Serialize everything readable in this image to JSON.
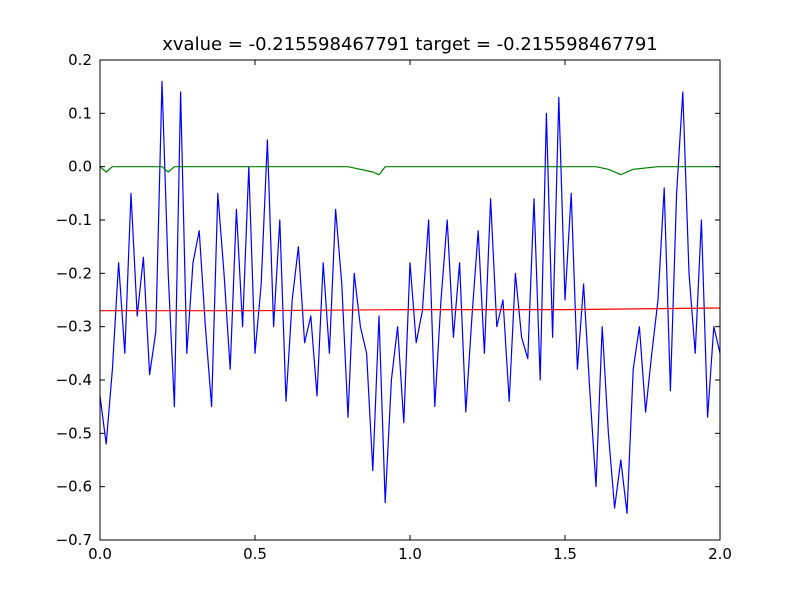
{
  "chart_data": {
    "type": "line",
    "title": "xvalue = -0.215598467791 target = -0.215598467791",
    "xlabel": "",
    "ylabel": "",
    "xlim": [
      0.0,
      2.0
    ],
    "ylim": [
      -0.7,
      0.2
    ],
    "grid": false,
    "x_ticks": [
      "0.0",
      "0.5",
      "1.0",
      "1.5",
      "2.0"
    ],
    "y_ticks": [
      "0.2",
      "0.1",
      "0.0",
      "−0.1",
      "−0.2",
      "−0.3",
      "−0.4",
      "−0.5",
      "−0.6",
      "−0.7"
    ],
    "series": [
      {
        "color": "#0000ff",
        "x": [
          0.0,
          0.02,
          0.04,
          0.06,
          0.08,
          0.1,
          0.12,
          0.14,
          0.16,
          0.18,
          0.2,
          0.22,
          0.24,
          0.26,
          0.28,
          0.3,
          0.32,
          0.34,
          0.36,
          0.38,
          0.4,
          0.42,
          0.44,
          0.46,
          0.48,
          0.5,
          0.52,
          0.54,
          0.56,
          0.58,
          0.6,
          0.62,
          0.64,
          0.66,
          0.68,
          0.7,
          0.72,
          0.74,
          0.76,
          0.78,
          0.8,
          0.82,
          0.84,
          0.86,
          0.88,
          0.9,
          0.92,
          0.94,
          0.96,
          0.98,
          1.0,
          1.02,
          1.04,
          1.06,
          1.08,
          1.1,
          1.12,
          1.14,
          1.16,
          1.18,
          1.2,
          1.22,
          1.24,
          1.26,
          1.28,
          1.3,
          1.32,
          1.34,
          1.36,
          1.38,
          1.4,
          1.42,
          1.44,
          1.46,
          1.48,
          1.5,
          1.52,
          1.54,
          1.56,
          1.58,
          1.6,
          1.62,
          1.64,
          1.66,
          1.68,
          1.7,
          1.72,
          1.74,
          1.76,
          1.78,
          1.8,
          1.82,
          1.84,
          1.86,
          1.88,
          1.9,
          1.92,
          1.94,
          1.96,
          1.98,
          2.0
        ],
        "y": [
          -0.43,
          -0.52,
          -0.38,
          -0.18,
          -0.35,
          -0.05,
          -0.28,
          -0.17,
          -0.39,
          -0.31,
          0.16,
          -0.2,
          -0.45,
          0.14,
          -0.35,
          -0.18,
          -0.12,
          -0.3,
          -0.45,
          -0.05,
          -0.2,
          -0.38,
          -0.08,
          -0.3,
          0.0,
          -0.35,
          -0.22,
          0.05,
          -0.3,
          -0.1,
          -0.44,
          -0.25,
          -0.15,
          -0.33,
          -0.28,
          -0.43,
          -0.18,
          -0.35,
          -0.08,
          -0.22,
          -0.47,
          -0.2,
          -0.3,
          -0.35,
          -0.57,
          -0.28,
          -0.63,
          -0.4,
          -0.3,
          -0.48,
          -0.18,
          -0.33,
          -0.27,
          -0.1,
          -0.45,
          -0.25,
          -0.1,
          -0.32,
          -0.18,
          -0.46,
          -0.28,
          -0.12,
          -0.35,
          -0.06,
          -0.3,
          -0.25,
          -0.44,
          -0.2,
          -0.32,
          -0.36,
          -0.06,
          -0.4,
          0.1,
          -0.32,
          0.13,
          -0.25,
          -0.05,
          -0.38,
          -0.22,
          -0.42,
          -0.6,
          -0.3,
          -0.5,
          -0.64,
          -0.55,
          -0.65,
          -0.38,
          -0.3,
          -0.46,
          -0.35,
          -0.25,
          -0.04,
          -0.42,
          -0.05,
          0.14,
          -0.2,
          -0.35,
          -0.1,
          -0.47,
          -0.3,
          -0.35
        ]
      },
      {
        "color": "#008000",
        "x": [
          0.0,
          0.02,
          0.04,
          0.06,
          0.08,
          0.1,
          0.15,
          0.2,
          0.22,
          0.24,
          0.26,
          0.3,
          0.4,
          0.5,
          0.6,
          0.7,
          0.8,
          0.88,
          0.9,
          0.92,
          1.0,
          1.1,
          1.2,
          1.3,
          1.4,
          1.5,
          1.6,
          1.64,
          1.68,
          1.7,
          1.72,
          1.8,
          1.9,
          2.0
        ],
        "y": [
          0.0,
          -0.01,
          0.0,
          0.0,
          0.0,
          0.0,
          0.0,
          0.0,
          -0.01,
          0.0,
          0.0,
          0.0,
          0.0,
          0.0,
          0.0,
          0.0,
          0.0,
          -0.01,
          -0.015,
          0.0,
          0.0,
          0.0,
          0.0,
          0.0,
          0.0,
          0.0,
          0.0,
          -0.005,
          -0.015,
          -0.01,
          -0.005,
          0.0,
          0.0,
          0.0
        ]
      },
      {
        "color": "#ff0000",
        "x": [
          0.0,
          0.5,
          1.0,
          1.5,
          2.0
        ],
        "y": [
          -0.27,
          -0.27,
          -0.268,
          -0.268,
          -0.265
        ]
      }
    ]
  }
}
